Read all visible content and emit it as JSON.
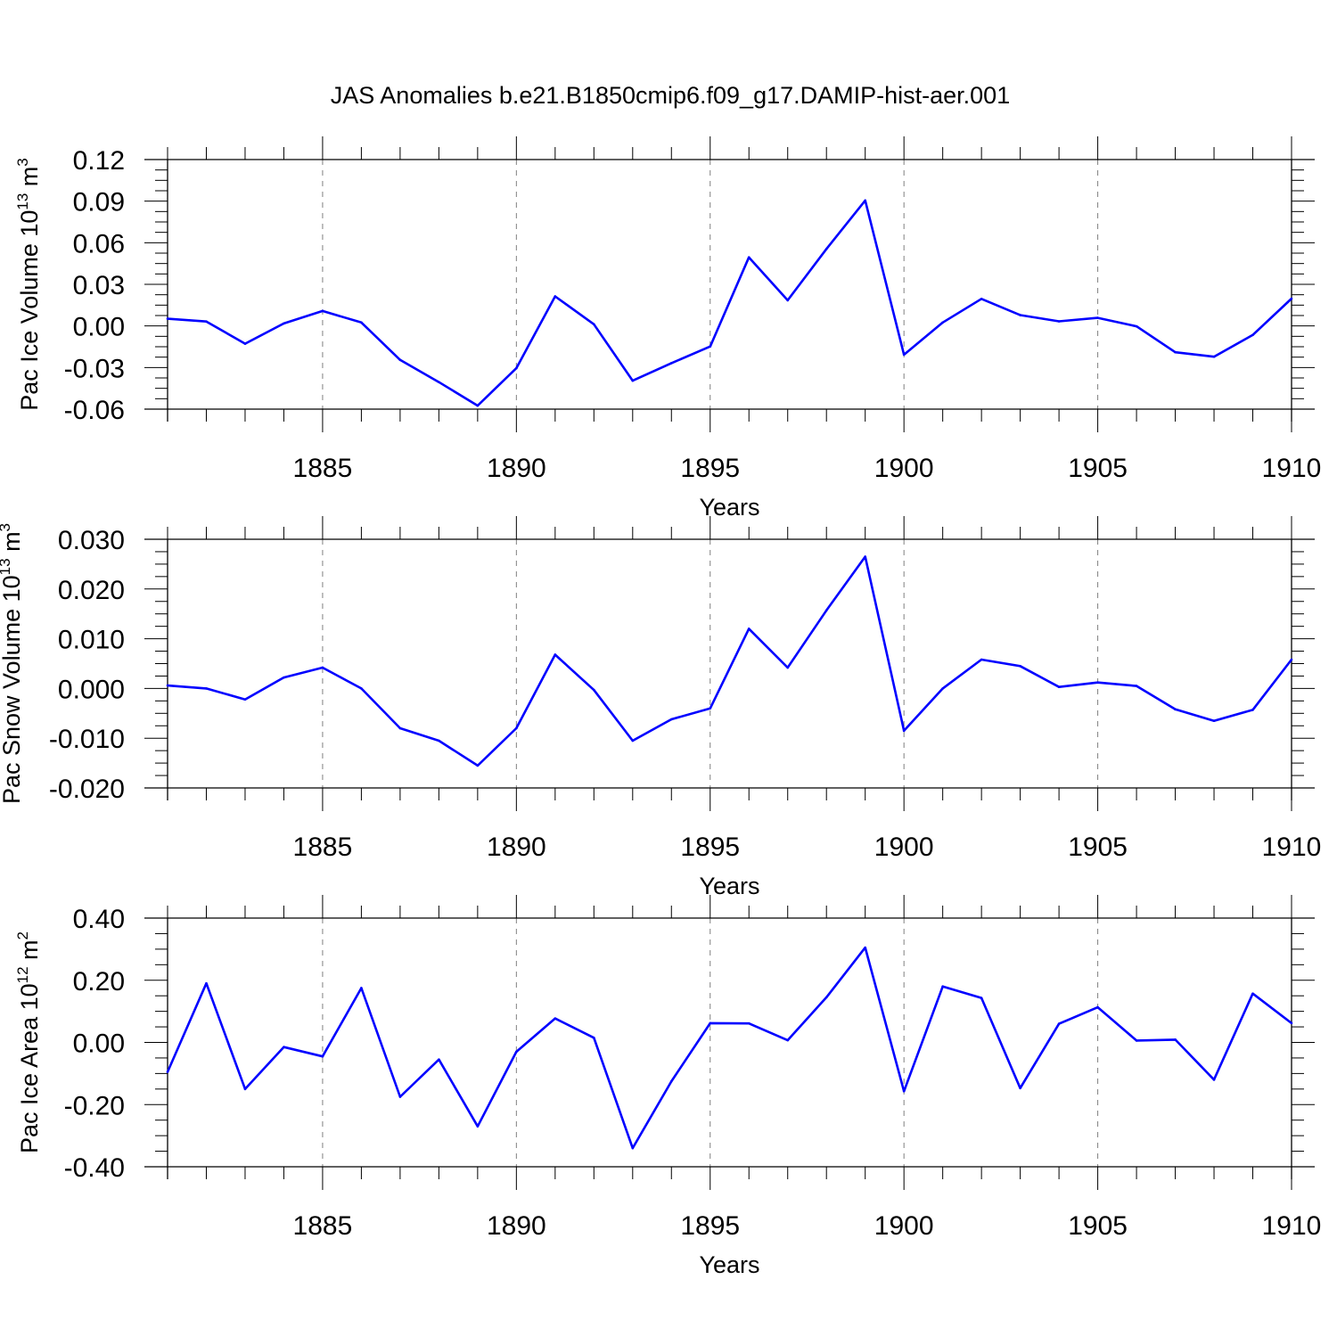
{
  "figure": {
    "title": "JAS Anomalies b.e21.B1850cmip6.f09_g17.DAMIP-hist-aer.001"
  },
  "chart_data": [
    {
      "type": "line",
      "ylabel": {
        "text": "Pac Ice Volume 10",
        "exp": "13",
        "unit_text": " m",
        "unit_exp": "3"
      },
      "xlabel": "Years",
      "xlim": [
        1881,
        1910
      ],
      "ylim": [
        -0.06,
        0.12
      ],
      "yticks": [
        "0.12",
        "0.09",
        "0.06",
        "0.03",
        "0.00",
        "-0.03",
        "-0.06"
      ],
      "ytick_values": [
        0.12,
        0.09,
        0.06,
        0.03,
        0.0,
        -0.03,
        -0.06
      ],
      "xticks": [
        "1885",
        "1890",
        "1895",
        "1900",
        "1905",
        "1910"
      ],
      "xtick_values": [
        1885,
        1890,
        1895,
        1900,
        1905,
        1910
      ],
      "color": "#0000ff",
      "x": [
        1881,
        1882,
        1883,
        1884,
        1885,
        1886,
        1887,
        1888,
        1889,
        1890,
        1891,
        1892,
        1893,
        1894,
        1895,
        1896,
        1897,
        1898,
        1899,
        1900,
        1901,
        1902,
        1903,
        1904,
        1905,
        1906,
        1907,
        1908,
        1909,
        1910
      ],
      "values": [
        0.0052,
        0.0032,
        -0.0128,
        0.0018,
        0.0108,
        0.0025,
        -0.0245,
        -0.0405,
        -0.0575,
        -0.0305,
        0.0213,
        0.0012,
        -0.0395,
        -0.0268,
        -0.0148,
        0.0495,
        0.0185,
        0.0555,
        0.0905,
        -0.0207,
        0.0025,
        0.0195,
        0.0078,
        0.0033,
        0.0058,
        -0.0003,
        -0.019,
        -0.0222,
        -0.0065,
        0.0197
      ]
    },
    {
      "type": "line",
      "ylabel": {
        "text": "Pac Snow Volume 10",
        "exp": "13",
        "unit_text": " m",
        "unit_exp": "3"
      },
      "xlabel": "Years",
      "xlim": [
        1881,
        1910
      ],
      "ylim": [
        -0.02,
        0.03
      ],
      "yticks": [
        "0.030",
        "0.020",
        "0.010",
        "0.000",
        "-0.010",
        "-0.020"
      ],
      "ytick_values": [
        0.03,
        0.02,
        0.01,
        0.0,
        -0.01,
        -0.02
      ],
      "xticks": [
        "1885",
        "1890",
        "1895",
        "1900",
        "1905",
        "1910"
      ],
      "xtick_values": [
        1885,
        1890,
        1895,
        1900,
        1905,
        1910
      ],
      "color": "#0000ff",
      "x": [
        1881,
        1882,
        1883,
        1884,
        1885,
        1886,
        1887,
        1888,
        1889,
        1890,
        1891,
        1892,
        1893,
        1894,
        1895,
        1896,
        1897,
        1898,
        1899,
        1900,
        1901,
        1902,
        1903,
        1904,
        1905,
        1906,
        1907,
        1908,
        1909,
        1910
      ],
      "values": [
        0.0006,
        0.0,
        -0.0022,
        0.0022,
        0.0042,
        0.0,
        -0.008,
        -0.0105,
        -0.0155,
        -0.008,
        0.0068,
        -0.0003,
        -0.0105,
        -0.0062,
        -0.004,
        0.012,
        0.0042,
        0.0157,
        0.0265,
        -0.0085,
        0.0,
        0.0058,
        0.0045,
        0.0003,
        0.0012,
        0.0005,
        -0.0042,
        -0.0065,
        -0.0043,
        0.0058
      ]
    },
    {
      "type": "line",
      "ylabel": {
        "text": "Pac Ice Area 10",
        "exp": "12",
        "unit_text": " m",
        "unit_exp": "2"
      },
      "xlabel": "Years",
      "xlim": [
        1881,
        1910
      ],
      "ylim": [
        -0.4,
        0.4
      ],
      "yticks": [
        "0.40",
        "0.20",
        "0.00",
        "-0.20",
        "-0.40"
      ],
      "ytick_values": [
        0.4,
        0.2,
        0.0,
        -0.2,
        -0.4
      ],
      "xticks": [
        "1885",
        "1890",
        "1895",
        "1900",
        "1905",
        "1910"
      ],
      "xtick_values": [
        1885,
        1890,
        1895,
        1900,
        1905,
        1910
      ],
      "color": "#0000ff",
      "x": [
        1881,
        1882,
        1883,
        1884,
        1885,
        1886,
        1887,
        1888,
        1889,
        1890,
        1891,
        1892,
        1893,
        1894,
        1895,
        1896,
        1897,
        1898,
        1899,
        1900,
        1901,
        1902,
        1903,
        1904,
        1905,
        1906,
        1907,
        1908,
        1909,
        1910
      ],
      "values": [
        -0.095,
        0.19,
        -0.15,
        -0.015,
        -0.045,
        0.175,
        -0.175,
        -0.055,
        -0.27,
        -0.03,
        0.077,
        0.015,
        -0.34,
        -0.125,
        0.062,
        0.061,
        0.007,
        0.145,
        0.305,
        -0.157,
        0.18,
        0.143,
        -0.147,
        0.06,
        0.113,
        0.006,
        0.009,
        -0.12,
        0.157,
        0.062
      ]
    }
  ]
}
